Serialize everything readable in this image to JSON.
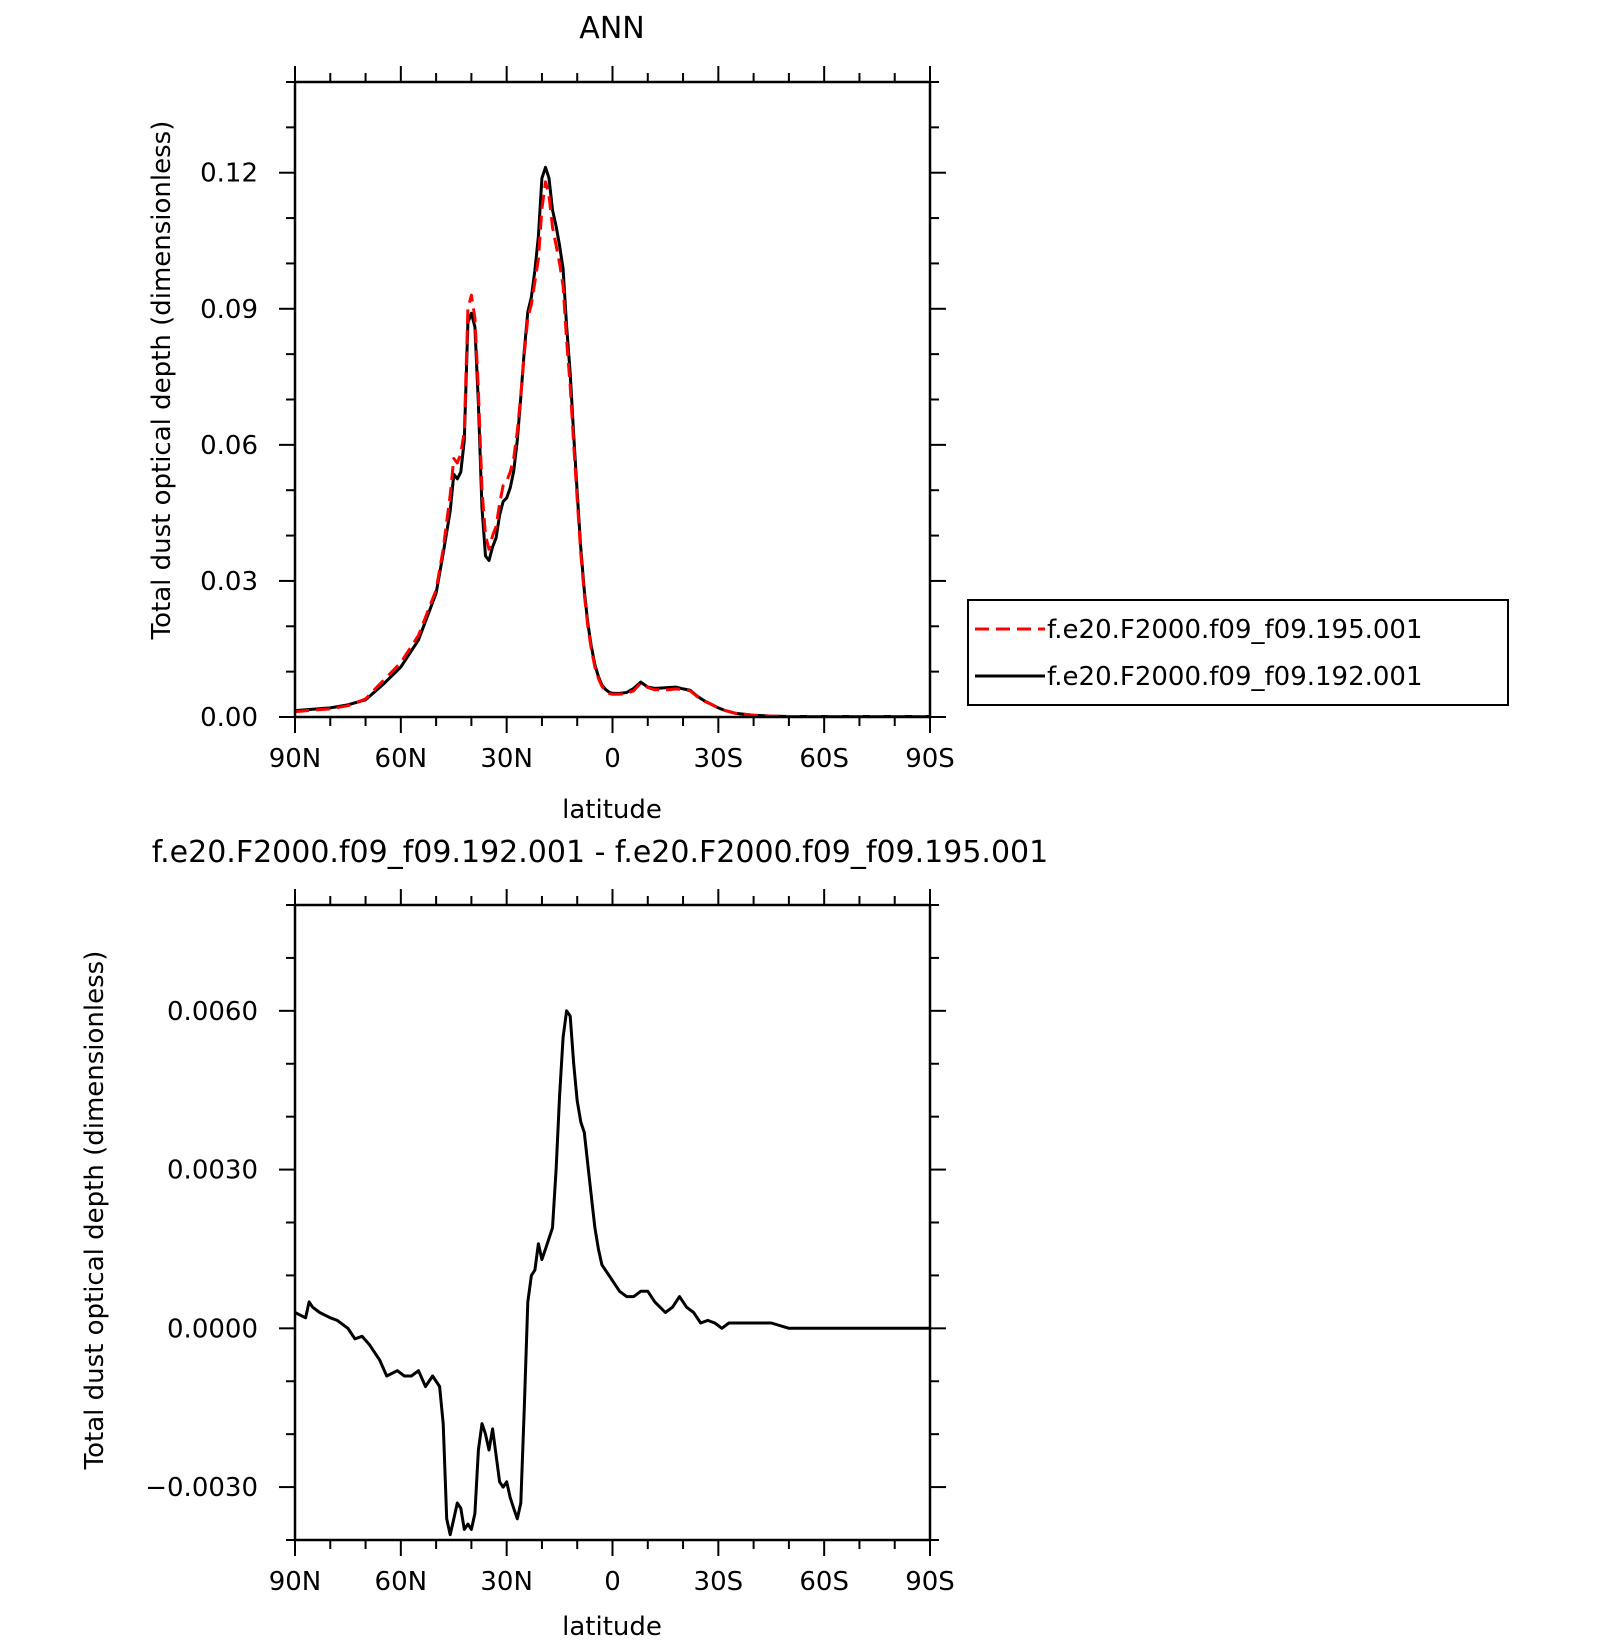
{
  "chart_data": [
    {
      "type": "line",
      "title": "ANN",
      "xlabel": "latitude",
      "ylabel": "Total dust optical depth (dimensionless)",
      "x_ticks": [
        "90N",
        "60N",
        "30N",
        "0",
        "30S",
        "60S",
        "90S"
      ],
      "y_ticks": [
        "0.00",
        "0.03",
        "0.06",
        "0.09",
        "0.12"
      ],
      "xlim": [
        90,
        -90
      ],
      "ylim": [
        0,
        0.14
      ],
      "x": [
        90,
        85,
        80,
        75,
        70,
        65,
        60,
        55,
        50,
        48,
        46,
        45,
        44,
        43,
        42,
        41,
        40,
        39,
        38,
        37,
        36,
        35,
        34,
        33,
        32,
        31,
        30,
        29,
        28,
        27,
        26,
        25,
        24,
        23,
        22,
        21,
        20,
        19,
        18,
        17,
        16,
        15,
        14,
        13,
        12,
        11,
        10,
        9,
        8,
        7,
        6,
        5,
        4,
        3,
        2,
        1,
        0,
        -2,
        -4,
        -6,
        -8,
        -10,
        -12,
        -14,
        -16,
        -18,
        -20,
        -22,
        -24,
        -26,
        -28,
        -30,
        -32,
        -35,
        -40,
        -45,
        -50,
        -55,
        -60,
        -70,
        -80,
        -90
      ],
      "series": [
        {
          "name": "f.e20.F2000.f09_f09.195.001",
          "color": "#ff0000",
          "dash": true,
          "values": [
            0.0012,
            0.0015,
            0.0018,
            0.0025,
            0.004,
            0.008,
            0.012,
            0.018,
            0.028,
            0.037,
            0.049,
            0.057,
            0.056,
            0.058,
            0.063,
            0.09,
            0.093,
            0.088,
            0.072,
            0.05,
            0.04,
            0.037,
            0.04,
            0.042,
            0.047,
            0.051,
            0.052,
            0.054,
            0.057,
            0.063,
            0.071,
            0.08,
            0.088,
            0.091,
            0.096,
            0.101,
            0.112,
            0.118,
            0.115,
            0.108,
            0.104,
            0.1,
            0.095,
            0.083,
            0.073,
            0.06,
            0.048,
            0.036,
            0.027,
            0.02,
            0.015,
            0.011,
            0.0085,
            0.0068,
            0.0058,
            0.0052,
            0.005,
            0.005,
            0.0052,
            0.0058,
            0.0075,
            0.0065,
            0.006,
            0.006,
            0.006,
            0.0062,
            0.006,
            0.0058,
            0.0045,
            0.0035,
            0.0028,
            0.002,
            0.0014,
            0.0008,
            0.0004,
            0.0002,
            0.0001,
            0.0001,
            0.0001,
            0.0001,
            0.0001,
            0.0001
          ]
        },
        {
          "name": "f.e20.F2000.f09_f09.192.001",
          "color": "#000000",
          "dash": false,
          "values": [
            0.0014,
            0.0017,
            0.002,
            0.0027,
            0.0038,
            0.0072,
            0.011,
            0.017,
            0.0273,
            0.0361,
            0.0454,
            0.0535,
            0.0525,
            0.054,
            0.061,
            0.087,
            0.089,
            0.086,
            0.069,
            0.046,
            0.0355,
            0.0345,
            0.0375,
            0.0395,
            0.0445,
            0.0475,
            0.0483,
            0.0505,
            0.0542,
            0.061,
            0.0705,
            0.0808,
            0.0893,
            0.0926,
            0.0985,
            0.106,
            0.1188,
            0.1212,
            0.1188,
            0.1118,
            0.1082,
            0.1039,
            0.0988,
            0.0862,
            0.0758,
            0.0622,
            0.0495,
            0.0372,
            0.0279,
            0.0207,
            0.0156,
            0.0115,
            0.0089,
            0.0071,
            0.0061,
            0.0055,
            0.0052,
            0.0052,
            0.0054,
            0.0063,
            0.0077,
            0.0066,
            0.0063,
            0.0064,
            0.0065,
            0.0066,
            0.0062,
            0.0059,
            0.0046,
            0.0036,
            0.0028,
            0.002,
            0.0014,
            0.0008,
            0.0004,
            0.0002,
            0.0001,
            0.0001,
            0.0001,
            0.0001,
            0.0001,
            0.0001
          ]
        }
      ],
      "legend_position": "right"
    },
    {
      "type": "line",
      "title": "f.e20.F2000.f09_f09.192.001 - f.e20.F2000.f09_f09.195.001",
      "xlabel": "latitude",
      "ylabel": "Total dust optical depth (dimensionless)",
      "x_ticks": [
        "90N",
        "60N",
        "30N",
        "0",
        "30S",
        "60S",
        "90S"
      ],
      "y_ticks": [
        "-0.0030",
        "0.0000",
        "0.0030",
        "0.0060"
      ],
      "xlim": [
        90,
        -90
      ],
      "ylim": [
        -0.004,
        0.008
      ],
      "x": [
        90,
        87,
        86,
        85,
        83,
        80,
        78,
        75,
        73,
        71,
        69,
        66,
        64,
        61,
        59,
        57,
        55,
        53,
        51,
        49,
        48,
        47,
        46,
        45,
        44,
        43,
        42,
        41,
        40,
        39,
        38,
        37,
        36,
        35,
        34,
        33,
        32,
        31,
        30,
        29,
        28,
        27,
        26,
        25,
        24,
        23,
        22,
        21,
        20,
        19,
        18,
        17,
        16,
        15,
        14,
        13,
        12,
        11,
        10,
        9,
        8,
        7,
        6,
        5,
        4,
        3,
        2,
        1,
        0,
        -2,
        -4,
        -6,
        -8,
        -10,
        -12,
        -15,
        -17,
        -19,
        -21,
        -23,
        -25,
        -27,
        -29,
        -31,
        -33,
        -35,
        -37,
        -40,
        -42,
        -45,
        -50,
        -55,
        -60,
        -70,
        -80,
        -90
      ],
      "series": [
        {
          "name": "",
          "color": "#000000",
          "dash": false,
          "values": [
            0.0003,
            0.0002,
            0.0005,
            0.0004,
            0.0003,
            0.0002,
            0.00015,
            0.0,
            -0.0002,
            -0.00015,
            -0.0003,
            -0.0006,
            -0.0009,
            -0.0008,
            -0.0009,
            -0.0009,
            -0.0008,
            -0.0011,
            -0.0009,
            -0.0011,
            -0.0018,
            -0.0036,
            -0.0039,
            -0.0036,
            -0.0033,
            -0.0034,
            -0.0038,
            -0.0037,
            -0.0038,
            -0.0035,
            -0.0023,
            -0.0018,
            -0.002,
            -0.0023,
            -0.0019,
            -0.0024,
            -0.0029,
            -0.003,
            -0.0029,
            -0.0032,
            -0.0034,
            -0.0036,
            -0.0033,
            -0.0015,
            0.0005,
            0.001,
            0.0011,
            0.0016,
            0.0013,
            0.0015,
            0.0017,
            0.0019,
            0.003,
            0.0044,
            0.0055,
            0.006,
            0.0059,
            0.005,
            0.0043,
            0.0039,
            0.0037,
            0.0031,
            0.0025,
            0.0019,
            0.0015,
            0.0012,
            0.0011,
            0.001,
            0.0009,
            0.0007,
            0.0006,
            0.0006,
            0.0007,
            0.0007,
            0.0005,
            0.0003,
            0.0004,
            0.0006,
            0.0004,
            0.0003,
            0.0001,
            0.00015,
            0.0001,
            0.0,
            0.0001,
            0.0001,
            0.0001,
            0.0001,
            0.0001,
            0.0001,
            0.0,
            0.0,
            0.0,
            0.0,
            0.0,
            0.0
          ]
        }
      ]
    }
  ]
}
